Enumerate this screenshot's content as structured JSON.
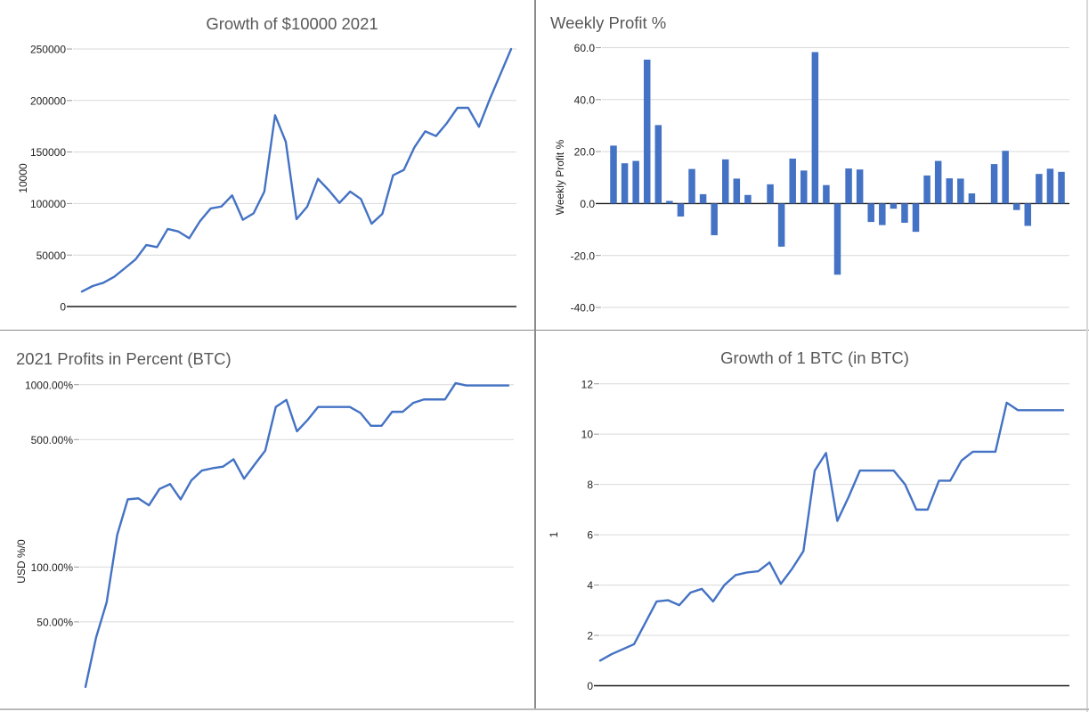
{
  "page": {
    "background": "#ffffff",
    "divider_color": "#8a8a8a",
    "outer_edge_color": "#c9c9c9"
  },
  "theme": {
    "series_color": "#4472C4",
    "gridline_color": "#d9d9d9",
    "axis_line_color": "#1a1a1a",
    "tick_label_color": "#1f1f1f",
    "title_color": "#595959"
  },
  "chart_data": [
    {
      "id": "usd_growth",
      "type": "line",
      "title": "Growth of $10000 2021",
      "title_align": "center",
      "y_axis_title": "10000",
      "scale": "linear",
      "ylim": [
        0,
        250000
      ],
      "grid": true,
      "legend": "none",
      "x_tick_labels": "none (weekly points, 2021)",
      "y_ticks": [
        {
          "label": "250000",
          "value": 250000
        },
        {
          "label": "200000",
          "value": 200000
        },
        {
          "label": "150000",
          "value": 150000
        },
        {
          "label": "100000",
          "value": 100000
        },
        {
          "label": "50000",
          "value": 50000
        },
        {
          "label": "0",
          "value": 0
        }
      ],
      "values": [
        14500,
        19900,
        23100,
        28800,
        37200,
        45800,
        59700,
        57700,
        75300,
        72800,
        66300,
        82800,
        95200,
        97100,
        107900,
        84200,
        90500,
        111600,
        185700,
        160000,
        84800,
        97000,
        124000,
        113000,
        100600,
        111600,
        104400,
        80400,
        90000,
        127400,
        132600,
        154800,
        170100,
        165500,
        177900,
        192900,
        192900,
        174500,
        201000,
        225500,
        250000
      ]
    },
    {
      "id": "weekly_profit",
      "type": "bar",
      "title": "Weekly Profit %",
      "title_align": "left",
      "y_axis_title": "Weekly Profit %",
      "scale": "linear",
      "ylim": [
        -40,
        60
      ],
      "grid": true,
      "legend": "none",
      "x_tick_labels": "none (weekly bars, 2021)",
      "y_ticks": [
        {
          "label": "60.0",
          "value": 60
        },
        {
          "label": "40.0",
          "value": 40
        },
        {
          "label": "20.0",
          "value": 20
        },
        {
          "label": "0.0",
          "value": 0
        },
        {
          "label": "-20.0",
          "value": -20
        },
        {
          "label": "-40.0",
          "value": -40
        }
      ],
      "values": [
        22.3,
        15.5,
        16.4,
        55.4,
        30.2,
        1.0,
        -5.0,
        13.3,
        3.6,
        -12.2,
        17.0,
        9.6,
        3.3,
        0.0,
        7.4,
        -16.6,
        17.3,
        12.7,
        58.3,
        7.1,
        -27.4,
        13.5,
        13.1,
        -7.1,
        -8.3,
        -2.0,
        -7.4,
        -10.9,
        10.8,
        16.4,
        9.7,
        9.6,
        3.9,
        0.0,
        15.2,
        20.3,
        -2.5,
        -8.6,
        11.4,
        13.4,
        12.2
      ]
    },
    {
      "id": "btc_profit_pct",
      "type": "line",
      "title": "2021 Profits in Percent (BTC)",
      "title_align": "left",
      "y_axis_title": "USD %/0",
      "scale": "log",
      "grid": true,
      "legend": "none",
      "x_tick_labels": "none (weekly points, 2021)",
      "y_ticks": [
        {
          "label": "1000.00%",
          "value": 1000
        },
        {
          "label": "500.00%",
          "value": 500
        },
        {
          "label": "100.00%",
          "value": 100
        },
        {
          "label": "50.00%",
          "value": 50
        }
      ],
      "values": [
        22,
        41,
        64,
        150,
        235,
        238,
        218,
        268,
        285,
        235,
        298,
        338,
        348,
        355,
        390,
        305,
        365,
        435,
        755,
        825,
        555,
        640,
        755,
        755,
        755,
        755,
        700,
        595,
        595,
        710,
        710,
        795,
        830,
        830,
        830,
        1020,
        990,
        990,
        990,
        990,
        990
      ]
    },
    {
      "id": "btc_growth",
      "type": "line",
      "title": "Growth of 1 BTC (in BTC)",
      "title_align": "center",
      "y_axis_title": "1",
      "scale": "linear",
      "ylim": [
        0,
        12
      ],
      "grid": true,
      "legend": "none",
      "x_tick_labels": "none (weekly points, 2021)",
      "y_ticks": [
        {
          "label": "12",
          "value": 12
        },
        {
          "label": "10",
          "value": 10
        },
        {
          "label": "8",
          "value": 8
        },
        {
          "label": "6",
          "value": 6
        },
        {
          "label": "4",
          "value": 4
        },
        {
          "label": "2",
          "value": 2
        },
        {
          "label": "0",
          "value": 0
        }
      ],
      "values": [
        1.0,
        1.25,
        1.45,
        1.65,
        2.5,
        3.35,
        3.4,
        3.2,
        3.7,
        3.85,
        3.35,
        4.0,
        4.4,
        4.5,
        4.55,
        4.9,
        4.05,
        4.65,
        5.35,
        8.55,
        9.25,
        6.55,
        7.5,
        8.55,
        8.55,
        8.55,
        8.55,
        8.0,
        7.0,
        7.0,
        8.15,
        8.15,
        8.95,
        9.3,
        9.3,
        9.3,
        11.25,
        10.95,
        10.95,
        10.95,
        10.95,
        10.95
      ]
    }
  ]
}
